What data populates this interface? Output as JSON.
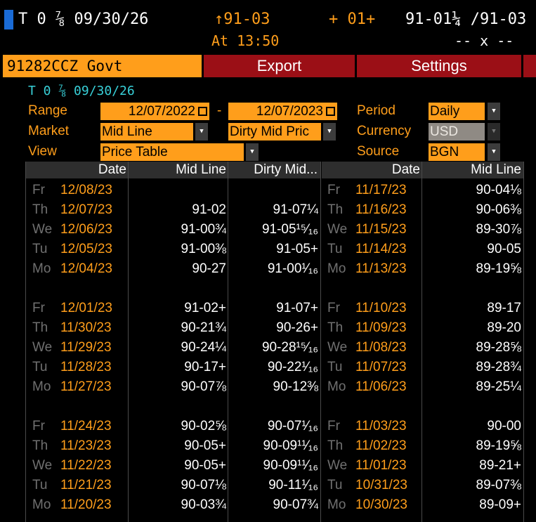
{
  "header": {
    "ticker": "T 0 ⅞ 09/30/26",
    "price": "↑91-03",
    "change": "+ 01+",
    "bid_ask": "91-01¼ /91-03",
    "time": "At 13:50",
    "size": "-- x --"
  },
  "toolbar": {
    "security": "91282CCZ Govt",
    "export_label": "Export",
    "settings_label": "Settings"
  },
  "subtitle": "T 0 ⅞ 09/30/26",
  "controls": {
    "range_label": "Range",
    "range_start": "12/07/2022",
    "range_sep": "-",
    "range_end": "12/07/2023",
    "period_label": "Period",
    "period_value": "Daily",
    "market_label": "Market",
    "market_value": "Mid Line",
    "market2_value": "Dirty Mid Pric",
    "currency_label": "Currency",
    "currency_value": "USD",
    "view_label": "View",
    "view_value": "Price Table",
    "source_label": "Source",
    "source_value": "BGN"
  },
  "table": {
    "headers": [
      "Date",
      "Mid Line",
      "Dirty Mid...",
      "Date",
      "Mid Line"
    ],
    "left_rows": [
      {
        "dow": "Fr",
        "date": "12/08/23",
        "mid": "",
        "dirty": ""
      },
      {
        "dow": "Th",
        "date": "12/07/23",
        "mid": "91-02",
        "dirty": "91-07¼"
      },
      {
        "dow": "We",
        "date": "12/06/23",
        "mid": "91-00¾",
        "dirty": "91-05¹⁵⁄₁₆"
      },
      {
        "dow": "Tu",
        "date": "12/05/23",
        "mid": "91-00⅜",
        "dirty": "91-05+"
      },
      {
        "dow": "Mo",
        "date": "12/04/23",
        "mid": "90-27",
        "dirty": "91-00¹⁄₁₆"
      },
      null,
      {
        "dow": "Fr",
        "date": "12/01/23",
        "mid": "91-02+",
        "dirty": "91-07+"
      },
      {
        "dow": "Th",
        "date": "11/30/23",
        "mid": "90-21¾",
        "dirty": "90-26+"
      },
      {
        "dow": "We",
        "date": "11/29/23",
        "mid": "90-24¼",
        "dirty": "90-28¹⁵⁄₁₆"
      },
      {
        "dow": "Tu",
        "date": "11/28/23",
        "mid": "90-17+",
        "dirty": "90-22¹⁄₁₆"
      },
      {
        "dow": "Mo",
        "date": "11/27/23",
        "mid": "90-07⅞",
        "dirty": "90-12⅜"
      },
      null,
      {
        "dow": "Fr",
        "date": "11/24/23",
        "mid": "90-02⅝",
        "dirty": "90-07¹⁄₁₆"
      },
      {
        "dow": "Th",
        "date": "11/23/23",
        "mid": "90-05+",
        "dirty": "90-09¹¹⁄₁₆"
      },
      {
        "dow": "We",
        "date": "11/22/23",
        "mid": "90-05+",
        "dirty": "90-09¹¹⁄₁₆"
      },
      {
        "dow": "Tu",
        "date": "11/21/23",
        "mid": "90-07⅛",
        "dirty": "90-11¹⁄₁₆"
      },
      {
        "dow": "Mo",
        "date": "11/20/23",
        "mid": "90-03¾",
        "dirty": "90-07¾"
      }
    ],
    "right_rows": [
      {
        "dow": "Fr",
        "date": "11/17/23",
        "mid": "90-04⅛"
      },
      {
        "dow": "Th",
        "date": "11/16/23",
        "mid": "90-06⅜"
      },
      {
        "dow": "We",
        "date": "11/15/23",
        "mid": "89-30⅞"
      },
      {
        "dow": "Tu",
        "date": "11/14/23",
        "mid": "90-05"
      },
      {
        "dow": "Mo",
        "date": "11/13/23",
        "mid": "89-19⅝"
      },
      null,
      {
        "dow": "Fr",
        "date": "11/10/23",
        "mid": "89-17"
      },
      {
        "dow": "Th",
        "date": "11/09/23",
        "mid": "89-20"
      },
      {
        "dow": "We",
        "date": "11/08/23",
        "mid": "89-28⅝"
      },
      {
        "dow": "Tu",
        "date": "11/07/23",
        "mid": "89-28¾"
      },
      {
        "dow": "Mo",
        "date": "11/06/23",
        "mid": "89-25¼"
      },
      null,
      {
        "dow": "Fr",
        "date": "11/03/23",
        "mid": "90-00"
      },
      {
        "dow": "Th",
        "date": "11/02/23",
        "mid": "89-19⅝"
      },
      {
        "dow": "We",
        "date": "11/01/23",
        "mid": "89-21+"
      },
      {
        "dow": "Tu",
        "date": "10/31/23",
        "mid": "89-07⅜"
      },
      {
        "dow": "Mo",
        "date": "10/30/23",
        "mid": "89-09+"
      }
    ]
  }
}
